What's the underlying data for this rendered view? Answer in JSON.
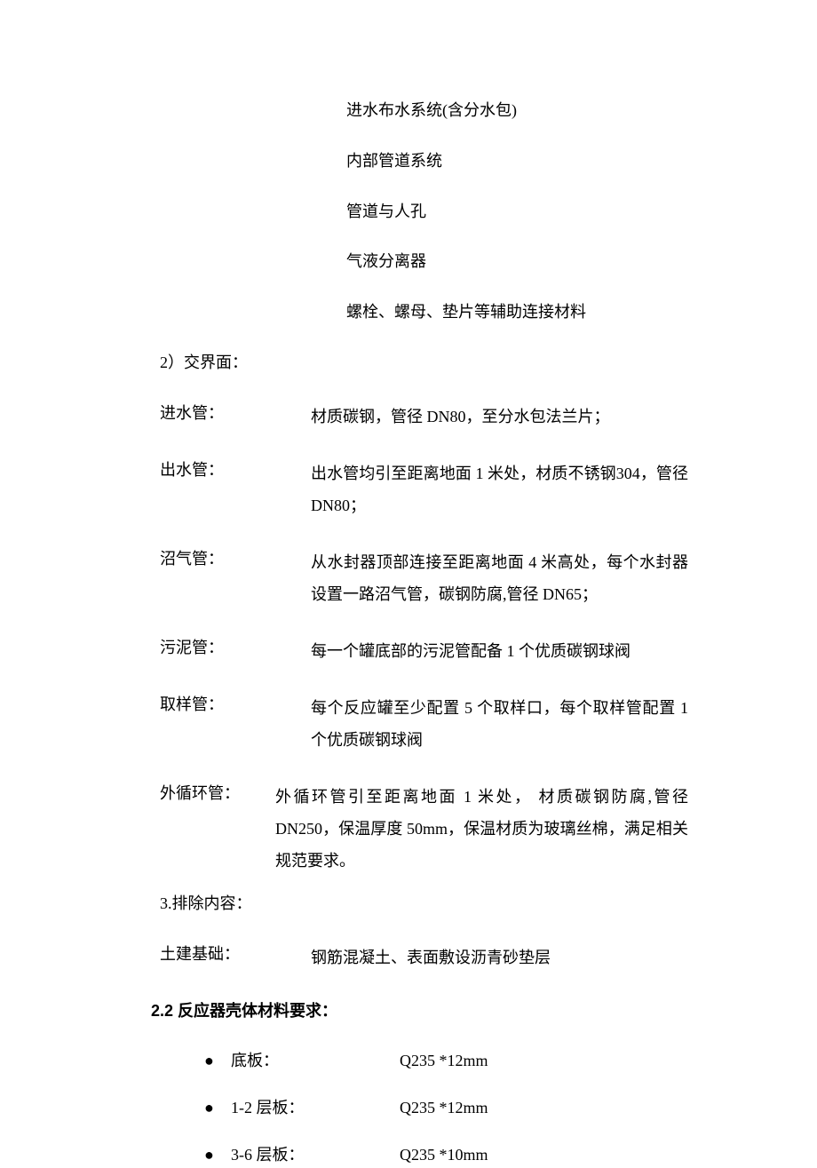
{
  "top_items": [
    "进水布水系统(含分水包)",
    "内部管道系统",
    "管道与人孔",
    "气液分离器",
    "螺栓、螺母、垫片等辅助连接材料"
  ],
  "interface": {
    "heading": "2）交界面：",
    "rows": [
      {
        "label": "进水管：",
        "value": "材质碳钢，管径 DN80，至分水包法兰片；"
      },
      {
        "label": "出水管：",
        "value": "出水管均引至距离地面 1 米处，材质不锈钢304，管径 DN80；"
      },
      {
        "label": "沼气管：",
        "value": "从水封器顶部连接至距离地面 4 米高处，每个水封器设置一路沼气管，碳钢防腐,管径 DN65；"
      },
      {
        "label": "污泥管：",
        "value": "每一个罐底部的污泥管配备 1 个优质碳钢球阀"
      },
      {
        "label": "取样管：",
        "value": "每个反应罐至少配置 5 个取样口，每个取样管配置 1 个优质碳钢球阀"
      }
    ],
    "alt_row": {
      "label": "外循环管：",
      "value": "外循环管引至距离地面 1 米处，  材质碳钢防腐,管径 DN250，保温厚度 50mm，保温材质为玻璃丝棉，满足相关规范要求。"
    }
  },
  "exclusion": {
    "heading": "3.排除内容：",
    "row": {
      "label": "土建基础：",
      "value": "钢筋混凝土、表面敷设沥青砂垫层"
    }
  },
  "section22": {
    "heading": "2.2  反应器壳体材料要求：",
    "bullets": [
      {
        "label": "底板：",
        "value": "Q235 *12mm"
      },
      {
        "label": "1-2 层板：",
        "value": "Q235 *12mm"
      },
      {
        "label": "3-6 层板：",
        "value": "Q235 *10mm"
      }
    ]
  }
}
